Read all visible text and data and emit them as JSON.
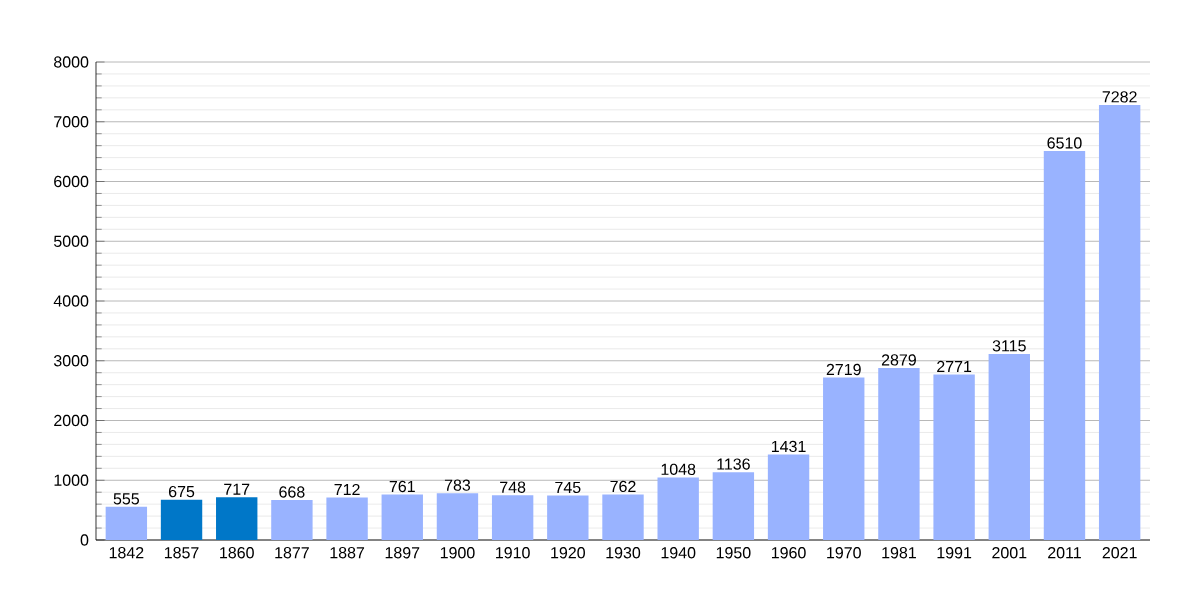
{
  "chart_data": {
    "type": "bar",
    "categories": [
      "1842",
      "1857",
      "1860",
      "1877",
      "1887",
      "1897",
      "1900",
      "1910",
      "1920",
      "1930",
      "1940",
      "1950",
      "1960",
      "1970",
      "1981",
      "1991",
      "2001",
      "2011",
      "2021"
    ],
    "values": [
      555,
      675,
      717,
      668,
      712,
      761,
      783,
      748,
      745,
      762,
      1048,
      1136,
      1431,
      2719,
      2879,
      2771,
      3115,
      6510,
      7282
    ],
    "colors": [
      "#99b3ff",
      "#0077c8",
      "#0077c8",
      "#99b3ff",
      "#99b3ff",
      "#99b3ff",
      "#99b3ff",
      "#99b3ff",
      "#99b3ff",
      "#99b3ff",
      "#99b3ff",
      "#99b3ff",
      "#99b3ff",
      "#99b3ff",
      "#99b3ff",
      "#99b3ff",
      "#99b3ff",
      "#99b3ff",
      "#99b3ff"
    ],
    "ylim": [
      0,
      8000
    ],
    "yticks": [
      0,
      1000,
      2000,
      3000,
      4000,
      5000,
      6000,
      7000,
      8000
    ],
    "grid": "y",
    "data_labels": true
  }
}
